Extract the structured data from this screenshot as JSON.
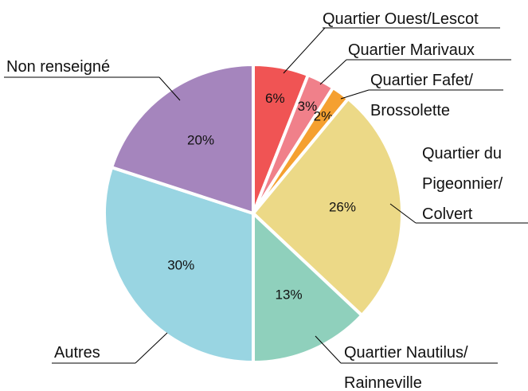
{
  "chart_data": {
    "type": "pie",
    "categories": [
      "Quartier Ouest/Lescot",
      "Quartier Marivaux",
      "Quartier Fafet/\nBrossolette",
      "Quartier du\nPigeonnier/\nColvert",
      "Quartier Nautilus/\nRainneville",
      "Autres",
      "Non renseigné"
    ],
    "values": [
      6,
      3,
      2,
      26,
      13,
      30,
      20
    ],
    "value_labels": [
      "6%",
      "3%",
      "2%",
      "26%",
      "13%",
      "30%",
      "20%"
    ],
    "colors": [
      "#f05454",
      "#f0808a",
      "#f5a030",
      "#ecd987",
      "#8fd0bc",
      "#99d5e2",
      "#a585bd"
    ]
  }
}
